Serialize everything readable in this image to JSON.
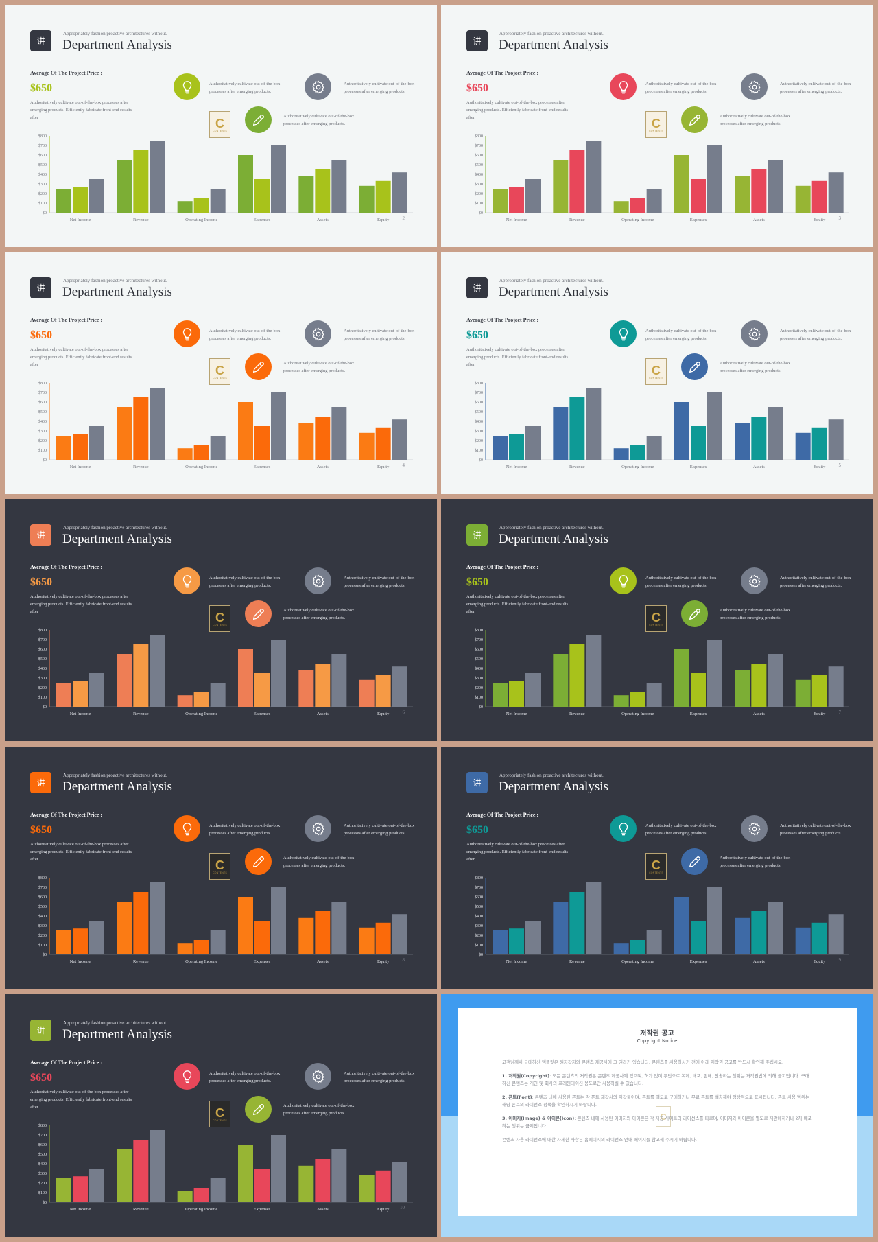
{
  "slide_common": {
    "header_icon_glyph": "讲",
    "subtitle": "Appropriately fashion proactive architectures without.",
    "title": "Department Analysis",
    "avg_label": "Average Of The Project Price :",
    "price": "$650",
    "description": "Authoritatively cultivate out-of-the-box processes after emerging products. Efficiently fabricate front-end results after",
    "feature_text": "Authoritatively cultivate out-of-the-box processes after emerging products.",
    "features": [
      {
        "icon": "lightbulb-icon"
      },
      {
        "icon": "gear-icon"
      },
      {
        "icon": "pencil-icon"
      }
    ],
    "logo_letter": "C",
    "logo_text": "CONTENTS"
  },
  "chart_data": {
    "type": "bar",
    "categories": [
      "Net Income",
      "Revenue",
      "Operating Income",
      "Expenses",
      "Assets",
      "Equity"
    ],
    "series": [
      {
        "values": [
          250,
          550,
          120,
          600,
          380,
          280
        ]
      },
      {
        "values": [
          270,
          650,
          150,
          350,
          450,
          330
        ]
      },
      {
        "values": [
          350,
          750,
          250,
          700,
          550,
          420
        ]
      }
    ],
    "y_ticks": [
      "$0",
      "$100",
      "$200",
      "$300",
      "$400",
      "$500",
      "$600",
      "$700",
      "$800"
    ],
    "ylim": [
      0,
      800
    ],
    "legend": "none",
    "grid": false
  },
  "slides": [
    {
      "page": "2",
      "theme": "light",
      "header_icon_bg": "#343741",
      "price_color": "#a8c21b",
      "axis_color": "#a8c21b",
      "circle_colors": [
        "#a8c21b",
        "#767d8c",
        "#7cae35"
      ],
      "series_colors": [
        "#7cae35",
        "#a8c21b",
        "#767d8c"
      ]
    },
    {
      "page": "3",
      "theme": "light",
      "header_icon_bg": "#343741",
      "price_color": "#e8475a",
      "axis_color": "#7cae35",
      "circle_colors": [
        "#e8475a",
        "#767d8c",
        "#97b534"
      ],
      "series_colors": [
        "#97b534",
        "#e8475a",
        "#767d8c"
      ]
    },
    {
      "page": "4",
      "theme": "light",
      "header_icon_bg": "#343741",
      "price_color": "#fb6a0a",
      "axis_color": "#fb7b14",
      "circle_colors": [
        "#fb6a0a",
        "#767d8c",
        "#fb6a0a"
      ],
      "series_colors": [
        "#fb7b14",
        "#fb6a0a",
        "#767d8c"
      ]
    },
    {
      "page": "5",
      "theme": "light",
      "header_icon_bg": "#343741",
      "price_color": "#0e9a96",
      "axis_color": "#3e6aa6",
      "circle_colors": [
        "#0e9a96",
        "#767d8c",
        "#3e6aa6"
      ],
      "series_colors": [
        "#3e6aa6",
        "#0e9a96",
        "#767d8c"
      ]
    },
    {
      "page": "6",
      "theme": "dark",
      "header_icon_bg": "#ee7e55",
      "price_color": "#f69a45",
      "axis_color": "#ee7e55",
      "circle_colors": [
        "#f69a45",
        "#767d8c",
        "#ee7e55"
      ],
      "series_colors": [
        "#ee7e55",
        "#f69a45",
        "#767d8c"
      ]
    },
    {
      "page": "7",
      "theme": "dark",
      "header_icon_bg": "#7cae35",
      "price_color": "#a8c21b",
      "axis_color": "#7cae35",
      "circle_colors": [
        "#a8c21b",
        "#767d8c",
        "#7cae35"
      ],
      "series_colors": [
        "#7cae35",
        "#a8c21b",
        "#767d8c"
      ]
    },
    {
      "page": "8",
      "theme": "dark",
      "header_icon_bg": "#fb6a0a",
      "price_color": "#fb6a0a",
      "axis_color": "#fb7b14",
      "circle_colors": [
        "#fb6a0a",
        "#767d8c",
        "#fb6a0a"
      ],
      "series_colors": [
        "#fb7b14",
        "#fb6a0a",
        "#767d8c"
      ]
    },
    {
      "page": "9",
      "theme": "dark",
      "header_icon_bg": "#3e6aa6",
      "price_color": "#0e9a96",
      "axis_color": "#3e6aa6",
      "circle_colors": [
        "#0e9a96",
        "#767d8c",
        "#3e6aa6"
      ],
      "series_colors": [
        "#3e6aa6",
        "#0e9a96",
        "#767d8c"
      ]
    },
    {
      "page": "10",
      "theme": "dark",
      "header_icon_bg": "#97b534",
      "price_color": "#e8475a",
      "axis_color": "#97b534",
      "circle_colors": [
        "#e8475a",
        "#767d8c",
        "#97b534"
      ],
      "series_colors": [
        "#97b534",
        "#e8475a",
        "#767d8c"
      ]
    }
  ],
  "copyright": {
    "title": "저작권 공고",
    "subtitle": "Copyright Notice",
    "intro": "고객님께서 구매하신 템플릿은 원저작자와 콘텐츠 제공사에 그 권리가 있습니다. 콘텐츠를 사용하시기 전에 아래 저작권 공고를 반드시 확인해 주십시오.",
    "sections": [
      {
        "heading": "1. 저작권(Copyright)",
        "text": ": 모든 콘텐츠의 저작권은 콘텐츠 제공사에 있으며, 허가 없이 무단으로 복제, 배포, 판매, 전송하는 행위는 저작권법에 의해 금지됩니다. 구매하신 콘텐츠는 개인 및 회사의 프레젠테이션 용도로만 사용하실 수 있습니다."
      },
      {
        "heading": "2. 폰트(Font)",
        "text": ": 콘텐츠 내에 사용된 폰트는 각 폰트 제작사의 저작물이며, 폰트를 별도로 구매하거나 무료 폰트를 설치해야 정상적으로 표시됩니다. 폰트 사용 범위는 해당 폰트의 라이선스 정책을 확인하시기 바랍니다."
      },
      {
        "heading": "3. 이미지(Image) & 아이콘(Icon)",
        "text": ": 콘텐츠 내에 사용된 이미지와 아이콘은 각 제공 사이트의 라이선스를 따르며, 이미지와 아이콘을 별도로 재판매하거나 2차 배포하는 행위는 금지됩니다."
      }
    ],
    "closing": "콘텐츠 사용 라이선스에 대한 자세한 사항은 홈페이지의 라이선스 안내 페이지를 참고해 주시기 바랍니다.",
    "logo_letter": "C"
  }
}
